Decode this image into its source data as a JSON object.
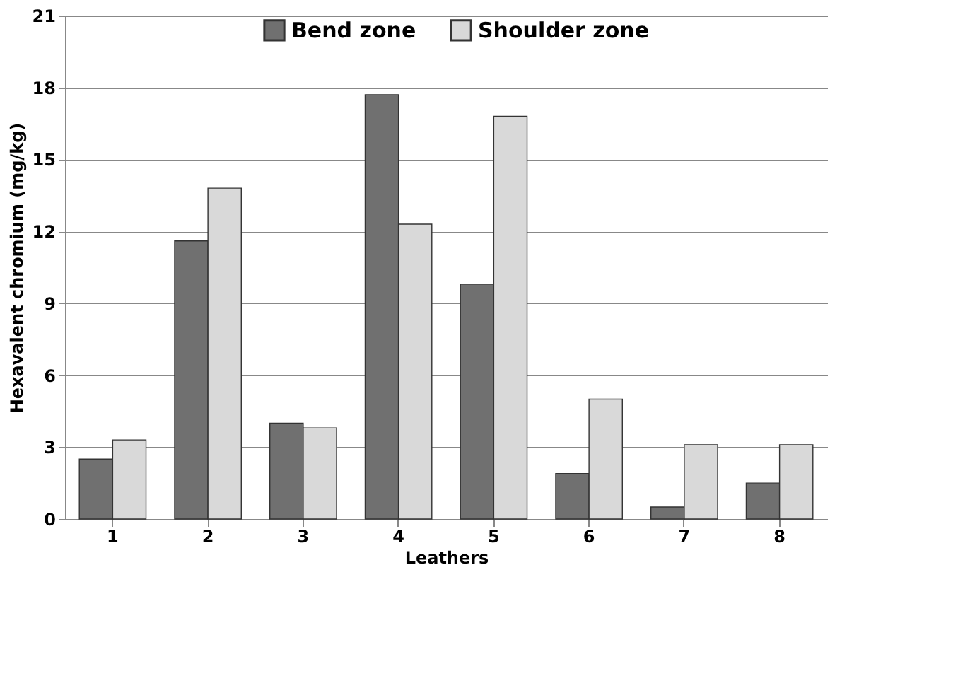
{
  "chart_data": {
    "type": "bar",
    "xlabel": "Leathers",
    "ylabel": "Hexavalent chromium (mg/kg)",
    "categories": [
      "1",
      "2",
      "3",
      "4",
      "5",
      "6",
      "7",
      "8"
    ],
    "series": [
      {
        "name": "Bend zone",
        "color": "#707070",
        "values": [
          2.5,
          11.6,
          4.0,
          17.7,
          9.8,
          1.9,
          0.5,
          1.5
        ]
      },
      {
        "name": "Shoulder zone",
        "color": "#d9d9d9",
        "values": [
          3.3,
          13.8,
          3.8,
          12.3,
          16.8,
          5.0,
          3.1,
          3.1
        ]
      }
    ],
    "ylim": [
      0,
      21
    ],
    "yticks": [
      0,
      3,
      6,
      9,
      12,
      15,
      18,
      21
    ],
    "grid": "y",
    "legend": "top"
  }
}
